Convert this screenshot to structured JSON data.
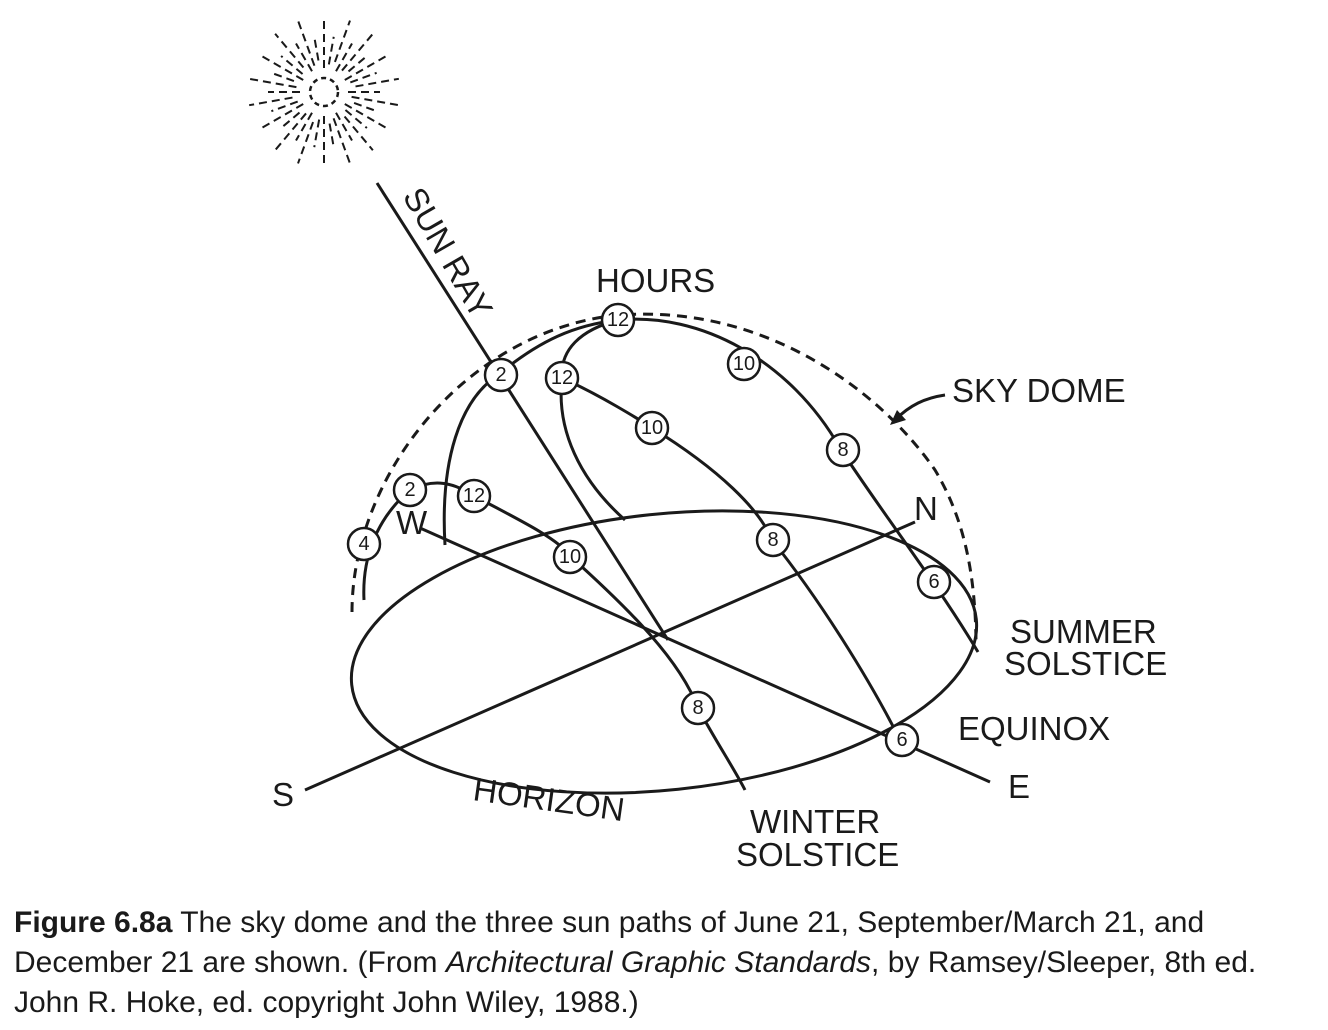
{
  "labels": {
    "sun_ray": "SUN RAY",
    "hours": "HOURS",
    "sky_dome": "SKY DOME",
    "summer_solstice_1": "SUMMER",
    "summer_solstice_2": "SOLSTICE",
    "equinox": "EQUINOX",
    "winter_solstice_1": "WINTER",
    "winter_solstice_2": "SOLSTICE",
    "horizon": "HORIZON",
    "south": "S",
    "north": "N",
    "east": "E",
    "west": "W"
  },
  "hour_markers": {
    "summer": [
      "12",
      "10",
      "8",
      "6",
      "2"
    ],
    "equinox": [
      "12",
      "10",
      "8",
      "6",
      "2",
      "4"
    ],
    "winter": [
      "12",
      "10",
      "8"
    ]
  },
  "caption": {
    "figure": "Figure 6.8a",
    "text1": " The sky dome and the three sun paths of June 21, September/March 21, and December 21 are shown. (From ",
    "book": "Architectural Graphic Standards",
    "text2": ", by Ramsey/Sleeper, 8th ed. John R. Hoke, ed. copyright John Wiley, 1988.)"
  }
}
